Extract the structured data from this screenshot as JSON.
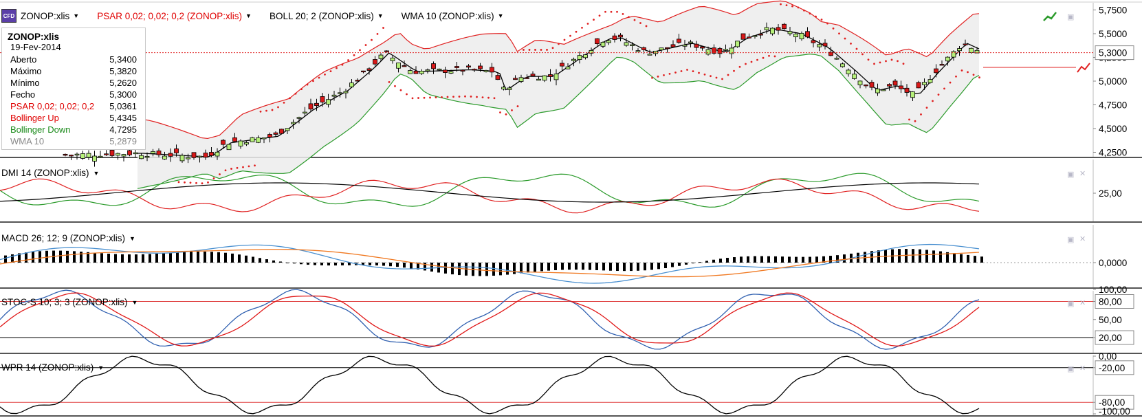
{
  "header": {
    "instrument": "ZONOP:xlis",
    "indicators": [
      {
        "label": "PSAR 0,02; 0,02; 0,2 (ZONOP:xlis)",
        "color": "#e00000"
      },
      {
        "label": "BOLL 20; 2 (ZONOP:xlis)",
        "color": "#000000"
      },
      {
        "label": "WMA 10 (ZONOP:xlis)",
        "color": "#000000"
      }
    ]
  },
  "info": {
    "title": "ZONOP:xlis",
    "date": "19-Fev-2014",
    "rows": [
      {
        "label": "Aberto",
        "value": "5,3400"
      },
      {
        "label": "Máximo",
        "value": "5,3820"
      },
      {
        "label": "Mínimo",
        "value": "5,2620"
      },
      {
        "label": "Fecho",
        "value": "5,3000"
      },
      {
        "label": "PSAR 0,02; 0,02; 0,2",
        "value": "5,0361"
      },
      {
        "label": "Bollinger Up",
        "value": "5,4345"
      },
      {
        "label": "Bollinger Down",
        "value": "4,7295"
      },
      {
        "label": "WMA 10",
        "value": "5,2879"
      }
    ]
  },
  "price_axis": {
    "ticks": [
      "5,7500",
      "5,5000",
      "5,2500",
      "5,0000",
      "4,7500",
      "4,5000",
      "4,2500"
    ],
    "current": "5,3000"
  },
  "panels": {
    "dmi": {
      "label": "DMI 14 (ZONOP:xlis)",
      "ticks": [
        "25,00"
      ]
    },
    "macd": {
      "label": "MACD 26; 12; 9 (ZONOP:xlis)",
      "ticks": [
        "0,0000"
      ]
    },
    "stoc": {
      "label": "STOC-S 10; 3; 3 (ZONOP:xlis)",
      "ticks": [
        "100,00",
        "80,00",
        "50,00",
        "20,00"
      ]
    },
    "wpr": {
      "label": "WPR 14 (ZONOP:xlis)",
      "ticks": [
        "0,00",
        "-20,00",
        "-80,00",
        "-100,00"
      ]
    }
  },
  "colors": {
    "bull": "#b6f07a",
    "bear": "#d81818",
    "psar": "#e02020",
    "boll_up": "#e02020",
    "boll_down": "#2a9a2a",
    "wma": "#000000",
    "macd": "#4a90d0",
    "signal": "#f07820",
    "stoc_k": "#3060b0",
    "stoc_d": "#e01818",
    "level_line": "#e04040"
  }
}
